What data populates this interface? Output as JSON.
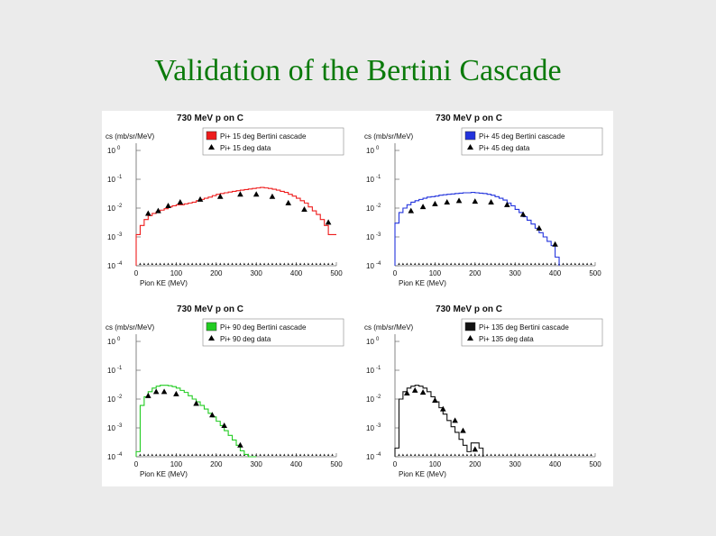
{
  "slide": {
    "title": "Validation of the Bertini Cascade"
  },
  "chart_data": [
    {
      "type": "line",
      "title": "730 MeV p on C",
      "ylabel": "cs (mb/sr/MeV)",
      "xlabel": "Pion KE (MeV)",
      "xlim": [
        0,
        500
      ],
      "ylim_log10": [
        -4,
        0
      ],
      "x_ticks": [
        "0",
        "100",
        "200",
        "300",
        "400",
        "500"
      ],
      "y_ticks": [
        {
          "base": "10",
          "exp": "0"
        },
        {
          "base": "10",
          "exp": "-1"
        },
        {
          "base": "10",
          "exp": "-2"
        },
        {
          "base": "10",
          "exp": "-3"
        },
        {
          "base": "10",
          "exp": "-4"
        }
      ],
      "legend": [
        "Pi+ 15 deg Bertini cascade",
        "Pi+ 15 deg data"
      ],
      "legend_position": "top-right",
      "color": "#ee1c1c",
      "hist_x": [
        0,
        10,
        20,
        30,
        40,
        50,
        60,
        70,
        80,
        90,
        100,
        110,
        120,
        130,
        140,
        150,
        160,
        170,
        180,
        190,
        200,
        210,
        220,
        230,
        240,
        250,
        260,
        270,
        280,
        290,
        300,
        310,
        320,
        330,
        340,
        350,
        360,
        370,
        380,
        390,
        400,
        410,
        420,
        430,
        440,
        450,
        460,
        470,
        480,
        490,
        500
      ],
      "hist_y": [
        0.0012,
        0.0025,
        0.004,
        0.0055,
        0.0065,
        0.0075,
        0.0085,
        0.0095,
        0.011,
        0.012,
        0.013,
        0.013,
        0.014,
        0.015,
        0.016,
        0.018,
        0.02,
        0.022,
        0.024,
        0.027,
        0.03,
        0.032,
        0.034,
        0.036,
        0.038,
        0.04,
        0.042,
        0.044,
        0.046,
        0.048,
        0.05,
        0.052,
        0.05,
        0.048,
        0.045,
        0.042,
        0.038,
        0.035,
        0.03,
        0.026,
        0.022,
        0.018,
        0.015,
        0.011,
        0.008,
        0.006,
        0.004,
        0.0025,
        0.0012,
        0.0012
      ],
      "points_x": [
        30,
        55,
        80,
        110,
        160,
        210,
        260,
        300,
        340,
        380,
        420,
        480
      ],
      "points_y": [
        0.0065,
        0.008,
        0.012,
        0.016,
        0.02,
        0.025,
        0.03,
        0.03,
        0.025,
        0.015,
        0.009,
        0.0032
      ]
    },
    {
      "type": "line",
      "title": "730 MeV p on C",
      "ylabel": "cs (mb/sr/MeV)",
      "xlabel": "Pion KE (MeV)",
      "xlim": [
        0,
        500
      ],
      "ylim_log10": [
        -4,
        0
      ],
      "x_ticks": [
        "0",
        "100",
        "200",
        "300",
        "400",
        "500"
      ],
      "y_ticks": [
        {
          "base": "10",
          "exp": "0"
        },
        {
          "base": "10",
          "exp": "-1"
        },
        {
          "base": "10",
          "exp": "-2"
        },
        {
          "base": "10",
          "exp": "-3"
        },
        {
          "base": "10",
          "exp": "-4"
        }
      ],
      "legend": [
        "Pi+ 45 deg Bertini cascade",
        "Pi+ 45 deg data"
      ],
      "legend_position": "top-right",
      "color": "#2233dd",
      "hist_x": [
        0,
        10,
        20,
        30,
        40,
        50,
        60,
        70,
        80,
        90,
        100,
        110,
        120,
        130,
        140,
        150,
        160,
        170,
        180,
        190,
        200,
        210,
        220,
        230,
        240,
        250,
        260,
        270,
        280,
        290,
        300,
        310,
        320,
        330,
        340,
        350,
        360,
        370,
        380,
        390,
        400,
        410
      ],
      "hist_y": [
        0.003,
        0.007,
        0.01,
        0.013,
        0.016,
        0.018,
        0.02,
        0.022,
        0.024,
        0.025,
        0.026,
        0.028,
        0.029,
        0.03,
        0.031,
        0.032,
        0.033,
        0.034,
        0.034,
        0.035,
        0.034,
        0.033,
        0.032,
        0.03,
        0.028,
        0.025,
        0.022,
        0.019,
        0.015,
        0.012,
        0.009,
        0.007,
        0.005,
        0.0038,
        0.0028,
        0.002,
        0.0014,
        0.001,
        0.0007,
        0.0005,
        0.0002,
        0.0001
      ],
      "points_x": [
        40,
        70,
        100,
        130,
        160,
        200,
        240,
        280,
        320,
        360,
        400
      ],
      "points_y": [
        0.008,
        0.011,
        0.014,
        0.016,
        0.018,
        0.017,
        0.016,
        0.013,
        0.006,
        0.002,
        0.00055
      ]
    },
    {
      "type": "line",
      "title": "730 MeV p on C",
      "ylabel": "cs (mb/sr/MeV)",
      "xlabel": "Pion KE (MeV)",
      "xlim": [
        0,
        500
      ],
      "ylim_log10": [
        -4,
        0
      ],
      "x_ticks": [
        "0",
        "100",
        "200",
        "300",
        "400",
        "500"
      ],
      "y_ticks": [
        {
          "base": "10",
          "exp": "0"
        },
        {
          "base": "10",
          "exp": "-1"
        },
        {
          "base": "10",
          "exp": "-2"
        },
        {
          "base": "10",
          "exp": "-3"
        },
        {
          "base": "10",
          "exp": "-4"
        }
      ],
      "legend": [
        "Pi+ 90 deg Bertini cascade",
        "Pi+ 90 deg data"
      ],
      "legend_position": "top-right",
      "color": "#22cc22",
      "hist_x": [
        0,
        10,
        20,
        30,
        40,
        50,
        60,
        70,
        80,
        90,
        100,
        110,
        120,
        130,
        140,
        150,
        160,
        170,
        180,
        190,
        200,
        210,
        220,
        230,
        240,
        250,
        260,
        270,
        280,
        290,
        300
      ],
      "hist_y": [
        0.00015,
        0.006,
        0.012,
        0.018,
        0.024,
        0.028,
        0.03,
        0.03,
        0.029,
        0.027,
        0.024,
        0.02,
        0.017,
        0.013,
        0.01,
        0.008,
        0.006,
        0.0045,
        0.0032,
        0.0024,
        0.0017,
        0.0012,
        0.0008,
        0.00055,
        0.00038,
        0.00025,
        0.00016,
        0.00012,
        0.0001,
        0.0001,
        0.0001
      ],
      "points_x": [
        30,
        50,
        70,
        100,
        150,
        190,
        220,
        260
      ],
      "points_y": [
        0.013,
        0.018,
        0.018,
        0.015,
        0.007,
        0.0028,
        0.0012,
        0.00025
      ]
    },
    {
      "type": "line",
      "title": "730 MeV p on C",
      "ylabel": "cs (mb/sr/MeV)",
      "xlabel": "Pion KE (MeV)",
      "xlim": [
        0,
        500
      ],
      "ylim_log10": [
        -4,
        0
      ],
      "x_ticks": [
        "0",
        "100",
        "200",
        "300",
        "400",
        "500"
      ],
      "y_ticks": [
        {
          "base": "10",
          "exp": "0"
        },
        {
          "base": "10",
          "exp": "-1"
        },
        {
          "base": "10",
          "exp": "-2"
        },
        {
          "base": "10",
          "exp": "-3"
        },
        {
          "base": "10",
          "exp": "-4"
        }
      ],
      "legend": [
        "Pi+ 135 deg Bertini cascade",
        "Pi+ 135 deg data"
      ],
      "legend_position": "top-right",
      "color": "#111111",
      "hist_x": [
        0,
        10,
        20,
        30,
        40,
        50,
        60,
        70,
        80,
        90,
        100,
        110,
        120,
        130,
        140,
        150,
        160,
        170,
        180,
        190,
        200,
        210,
        220
      ],
      "hist_y": [
        0.0002,
        0.01,
        0.018,
        0.024,
        0.028,
        0.03,
        0.028,
        0.024,
        0.018,
        0.012,
        0.008,
        0.005,
        0.003,
        0.0018,
        0.0011,
        0.0007,
        0.0004,
        0.00025,
        0.00015,
        0.0003,
        0.0003,
        0.0002,
        0.0001
      ],
      "points_x": [
        30,
        50,
        70,
        100,
        120,
        150,
        170,
        200
      ],
      "points_y": [
        0.016,
        0.02,
        0.017,
        0.009,
        0.0045,
        0.0018,
        0.0008,
        0.00018
      ]
    }
  ]
}
